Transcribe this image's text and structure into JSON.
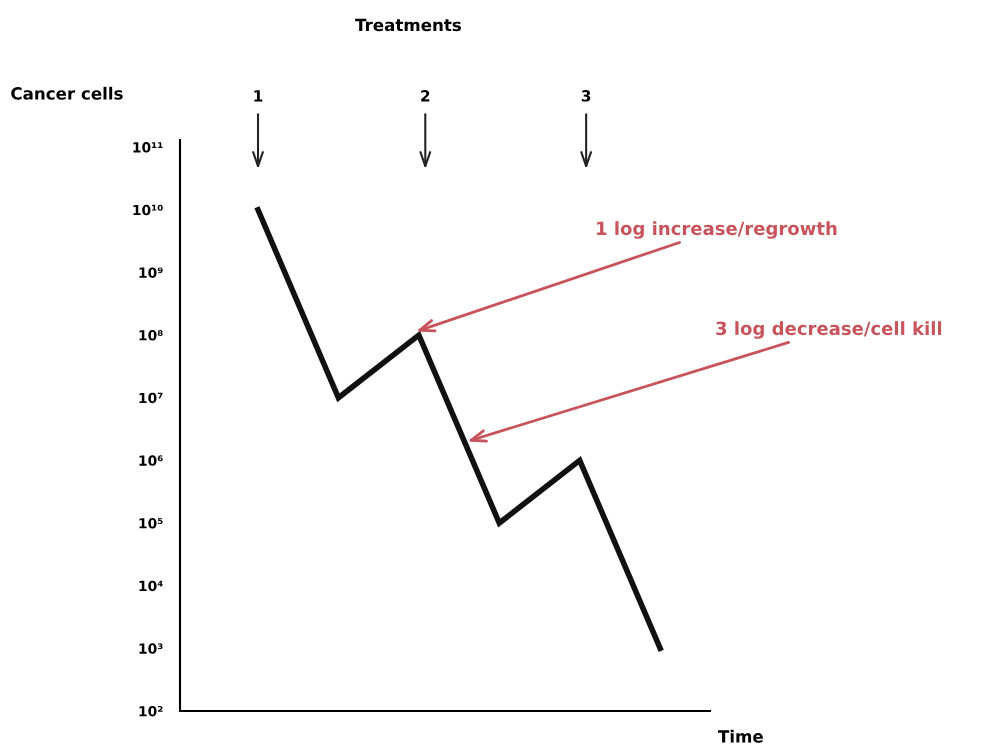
{
  "chart_data": {
    "type": "line",
    "ylabel": "Cancer cells",
    "xlabel": "Time",
    "categories": [
      null,
      null,
      null,
      null,
      null,
      null
    ],
    "series": [
      {
        "color": "#111111",
        "values": [
          10000000000.0,
          10000000.0,
          100000000.0,
          100000.0,
          1000000.0,
          1000.0
        ]
      }
    ],
    "log": "y",
    "ylim": [
      100,
      130000000000
    ],
    "yticks": [
      {
        "value": 100,
        "label": "10²"
      },
      {
        "value": 1000,
        "label": "10³"
      },
      {
        "value": 10000,
        "label": "10⁴"
      },
      {
        "value": 100000,
        "label": "10⁵"
      },
      {
        "value": 1000000,
        "label": "10⁶"
      },
      {
        "value": 10000000,
        "label": "10⁷"
      },
      {
        "value": 100000000,
        "label": "10⁸"
      },
      {
        "value": 1000000000,
        "label": "10⁹"
      },
      {
        "value": 10000000000,
        "label": "10¹⁰"
      },
      {
        "value": 100000000000,
        "label": "10¹¹"
      }
    ],
    "tick_labels": "y",
    "grid": false,
    "legend": false,
    "marker": "none",
    "line_style": "solid",
    "annotations": [
      "Treatments",
      "1",
      "2",
      "3",
      "1 log increase/regrowth",
      "3 log decrease/cell kill"
    ]
  }
}
